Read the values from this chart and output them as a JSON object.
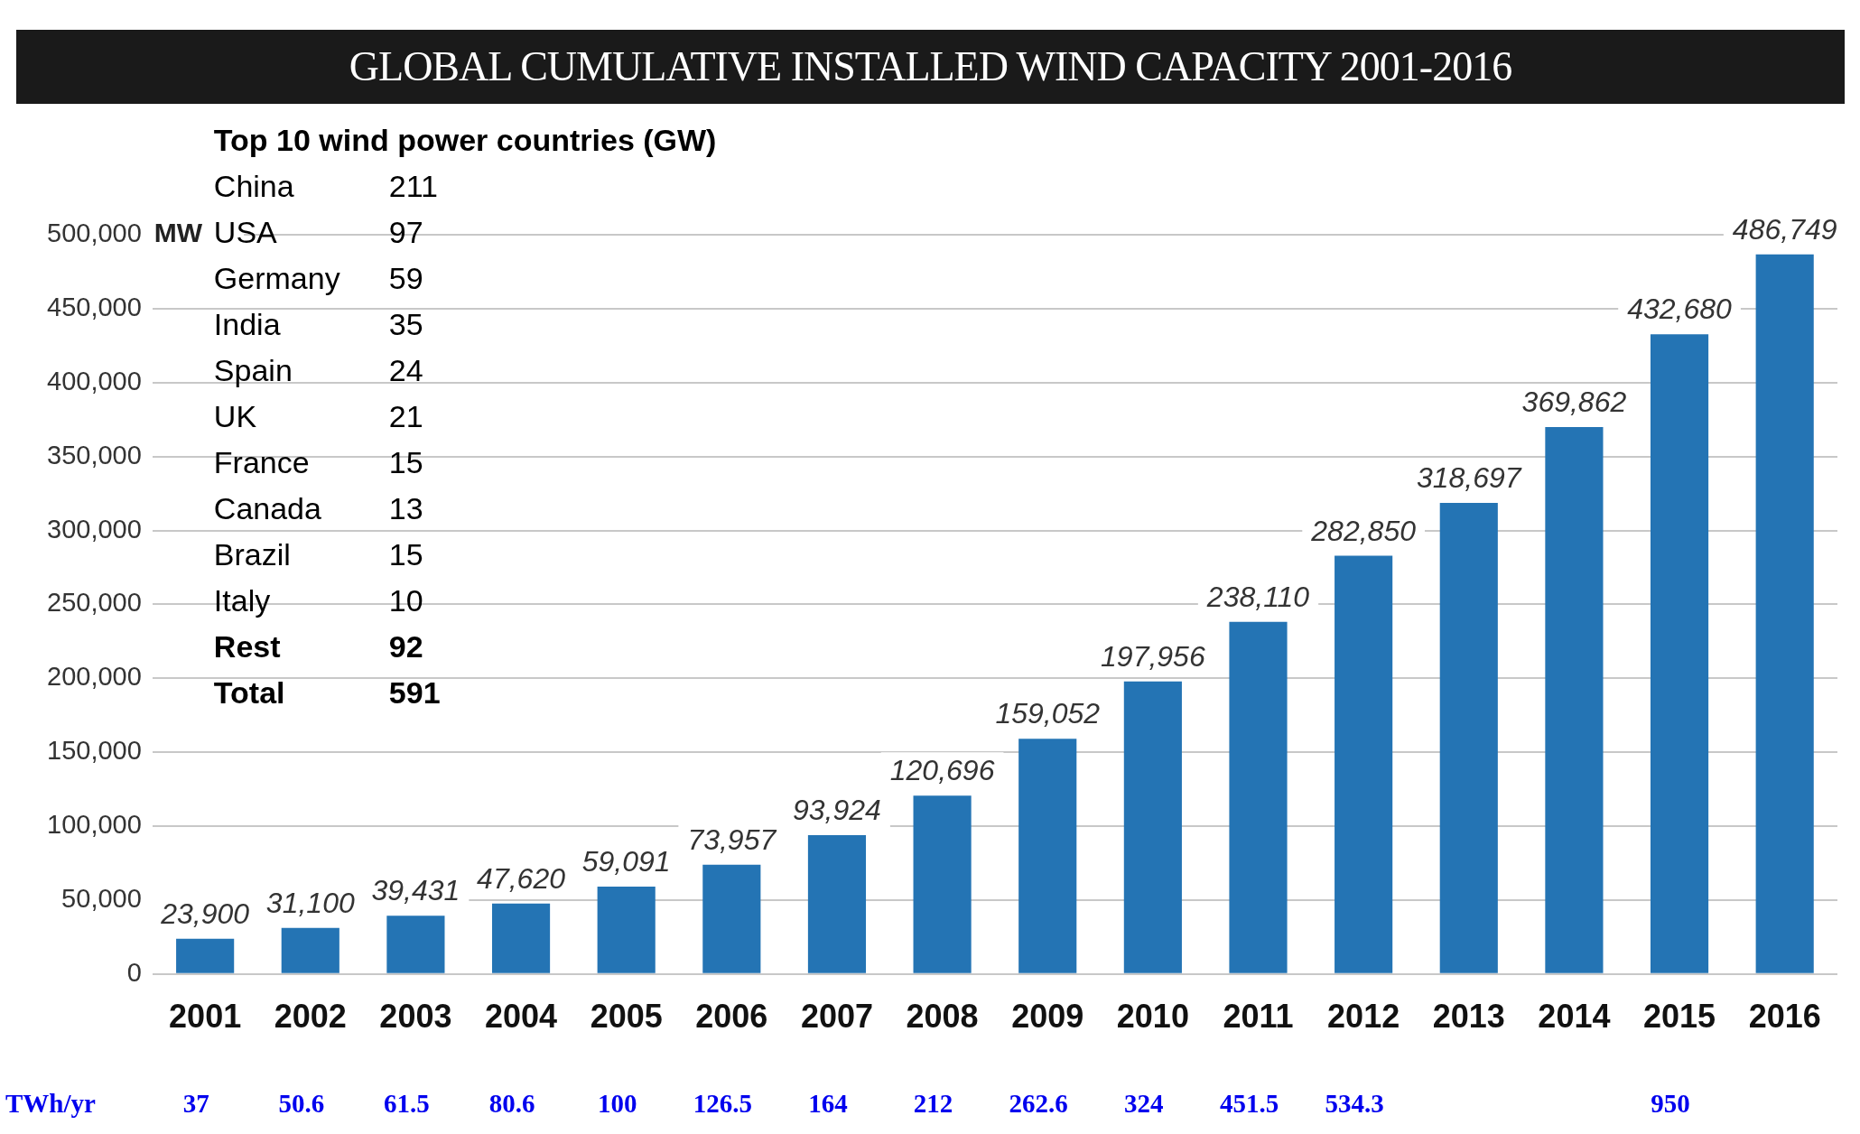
{
  "chart_data": {
    "type": "bar",
    "title": "GLOBAL CUMULATIVE INSTALLED WIND CAPACITY 2001-2016",
    "ylabel": "MW",
    "categories": [
      "2001",
      "2002",
      "2003",
      "2004",
      "2005",
      "2006",
      "2007",
      "2008",
      "2009",
      "2010",
      "2011",
      "2012",
      "2013",
      "2014",
      "2015",
      "2016"
    ],
    "values": [
      23900,
      31100,
      39431,
      47620,
      59091,
      73957,
      93924,
      120696,
      159052,
      197956,
      238110,
      282850,
      318697,
      369862,
      432680,
      486749
    ],
    "value_labels": [
      "23,900",
      "31,100",
      "39,431",
      "47,620",
      "59,091",
      "73,957",
      "93,924",
      "120,696",
      "159,052",
      "197,956",
      "238,110",
      "282,850",
      "318,697",
      "369,862",
      "432,680",
      "486,749"
    ],
    "color": "#2474b4",
    "grid": "y",
    "legend": false,
    "ylim": [
      0,
      500000
    ],
    "yticks": [
      {
        "value": 0,
        "label": "0"
      },
      {
        "value": 50000,
        "label": "50,000"
      },
      {
        "value": 100000,
        "label": "100,000"
      },
      {
        "value": 150000,
        "label": "150,000"
      },
      {
        "value": 200000,
        "label": "200,000"
      },
      {
        "value": 250000,
        "label": "250,000"
      },
      {
        "value": 300000,
        "label": "300,000"
      },
      {
        "value": 350000,
        "label": "350,000"
      },
      {
        "value": 400000,
        "label": "400,000"
      },
      {
        "value": 450000,
        "label": "450,000"
      },
      {
        "value": 500000,
        "label": "500,000"
      }
    ],
    "annotations": [
      "Top 10 wind power countries (GW)",
      "China 211",
      "USA 97",
      "Germany 59",
      "India 35",
      "Spain 24",
      "UK 21",
      "France 15",
      "Canada 13",
      "Brazil 15",
      "Italy 10",
      "Rest 92",
      "Total 591",
      "TWh/yr",
      "37",
      "50.6",
      "61.5",
      "80.6",
      "100",
      "126.5",
      "164",
      "212",
      "262.6",
      "324",
      "451.5",
      "534.3",
      "950"
    ]
  }
}
